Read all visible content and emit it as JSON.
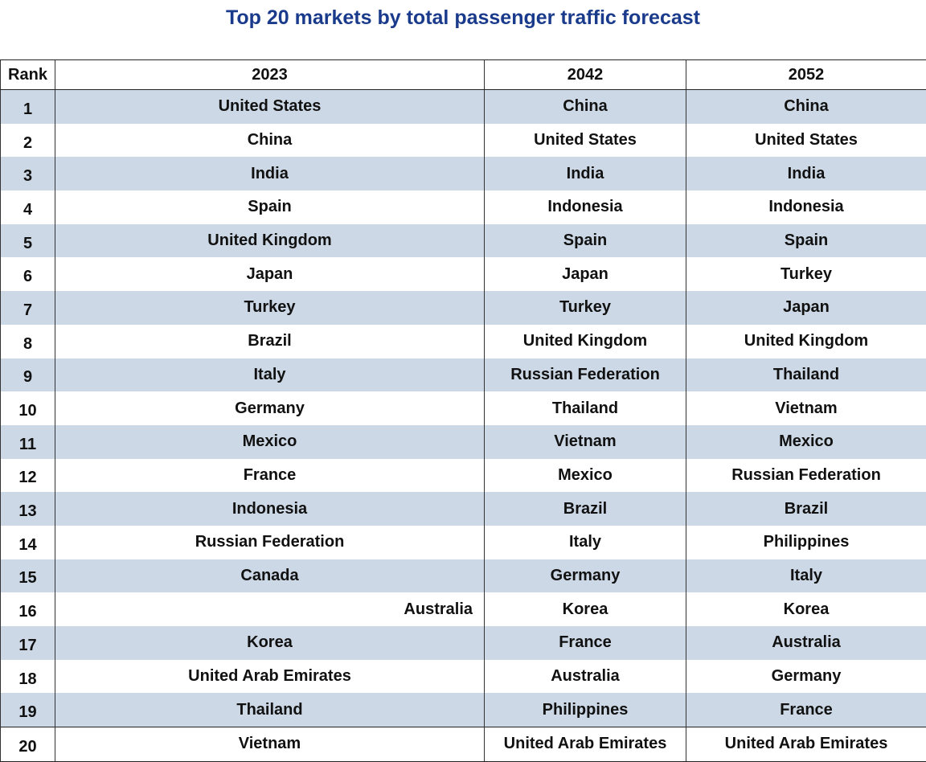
{
  "title": "Top 20 markets by total passenger traffic forecast",
  "headers": [
    "Rank",
    "2023",
    "2042",
    "2052"
  ],
  "rows": [
    [
      "1",
      "United States",
      "China",
      "China"
    ],
    [
      "2",
      "China",
      "United States",
      "United States"
    ],
    [
      "3",
      "India",
      "India",
      "India"
    ],
    [
      "4",
      "Spain",
      "Indonesia",
      "Indonesia"
    ],
    [
      "5",
      "United Kingdom",
      "Spain",
      "Spain"
    ],
    [
      "6",
      "Japan",
      "Japan",
      "Turkey"
    ],
    [
      "7",
      "Turkey",
      "Turkey",
      "Japan"
    ],
    [
      "8",
      "Brazil",
      "United Kingdom",
      "United Kingdom"
    ],
    [
      "9",
      "Italy",
      "Russian Federation",
      "Thailand"
    ],
    [
      "10",
      "Germany",
      "Thailand",
      "Vietnam"
    ],
    [
      "11",
      "Mexico",
      "Vietnam",
      "Mexico"
    ],
    [
      "12",
      "France",
      "Mexico",
      "Russian Federation"
    ],
    [
      "13",
      "Indonesia",
      "Brazil",
      "Brazil"
    ],
    [
      "14",
      "Russian Federation",
      "Italy",
      "Philippines"
    ],
    [
      "15",
      "Canada",
      "Germany",
      "Italy"
    ],
    [
      "16",
      "Australia",
      "Korea",
      "Korea"
    ],
    [
      "17",
      "Korea",
      "France",
      "Australia"
    ],
    [
      "18",
      "United Arab Emirates",
      "Australia",
      "Germany"
    ],
    [
      "19",
      "Thailand",
      "Philippines",
      "France"
    ],
    [
      "20",
      "Vietnam",
      "United Arab Emirates",
      "United Arab Emirates"
    ]
  ]
}
